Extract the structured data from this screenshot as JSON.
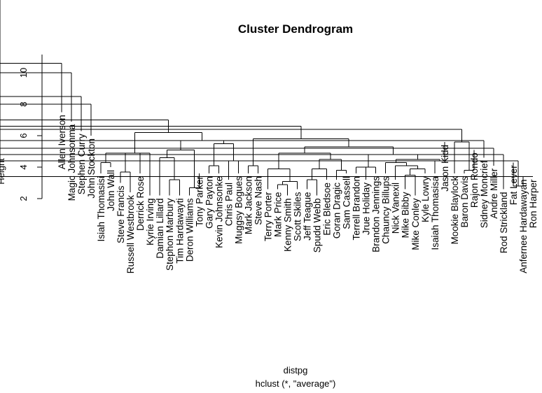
{
  "chart_data": {
    "type": "dendrogram",
    "title": "Cluster Dendrogram",
    "xlabel": "distpg",
    "sub": "hclust (*, \"average\")",
    "ylabel": "Height",
    "ylim": [
      2,
      11
    ],
    "yticks": [
      2,
      4,
      6,
      8,
      10
    ],
    "leaves": [
      {
        "name": "Allen Iverson",
        "h": 7.5
      },
      {
        "name": "Magic Johnsonma",
        "h": 6.9
      },
      {
        "name": "Stephen Curry",
        "h": 6.3
      },
      {
        "name": "John Stockton",
        "h": 6.0
      },
      {
        "name": "Isiah Thomasisi",
        "h": 3.6
      },
      {
        "name": "John Wall",
        "h": 4.0
      },
      {
        "name": "Steve Francis",
        "h": 3.0
      },
      {
        "name": "Russell Westbrook",
        "h": 2.4
      },
      {
        "name": "Derrick Rose",
        "h": 3.6
      },
      {
        "name": "Kyrie Irving",
        "h": 2.2
      },
      {
        "name": "Damian Lillard",
        "h": 2.2
      },
      {
        "name": "Stephon Marbury",
        "h": 2.2
      },
      {
        "name": "Tim Hardawayti",
        "h": 2.2
      },
      {
        "name": "Deron Williams",
        "h": 2.2
      },
      {
        "name": "Tony Parker",
        "h": 3.6
      },
      {
        "name": "Gary Payton",
        "h": 3.6
      },
      {
        "name": "Kevin Johnsonke",
        "h": 3.6
      },
      {
        "name": "Chris Paul",
        "h": 3.2
      },
      {
        "name": "Muggsy Bogues",
        "h": 3.6
      },
      {
        "name": "Mark Jackson",
        "h": 3.6
      },
      {
        "name": "Steve Nash",
        "h": 3.6
      },
      {
        "name": "Terry Porter",
        "h": 2.6
      },
      {
        "name": "Mark Price",
        "h": 2.6
      },
      {
        "name": "Kenny Smith",
        "h": 2.2
      },
      {
        "name": "Scott Skiles",
        "h": 2.6
      },
      {
        "name": "Jeff Teague",
        "h": 2.6
      },
      {
        "name": "Spudd Webb",
        "h": 2.2
      },
      {
        "name": "Eric Bledsoe",
        "h": 3.2
      },
      {
        "name": "Goran Dragic",
        "h": 3.2
      },
      {
        "name": "Sam Cassell",
        "h": 3.6
      },
      {
        "name": "Terrell Brandon",
        "h": 3.6
      },
      {
        "name": "Jrue Holiday",
        "h": 3.2
      },
      {
        "name": "Brandon Jennings",
        "h": 3.6
      },
      {
        "name": "Chauncy Billups",
        "h": 3.6
      },
      {
        "name": "Nick Vanexil",
        "h": 3.2
      },
      {
        "name": "Mike Bibby",
        "h": 2.6
      },
      {
        "name": "Mike Conley",
        "h": 2.2
      },
      {
        "name": "Kyle Lowry",
        "h": 3.6
      },
      {
        "name": "Isaiah Thomasisa",
        "h": 3.6
      },
      {
        "name": "Jason Kidd",
        "h": 5.6
      },
      {
        "name": "Mookie Blaylock",
        "h": 3.6
      },
      {
        "name": "Baron Davis",
        "h": 3.6
      },
      {
        "name": "Rajon Rondo",
        "h": 5.1
      },
      {
        "name": "Sidney Moncrief",
        "h": 4.6
      },
      {
        "name": "Andre Miller",
        "h": 4.1
      },
      {
        "name": "Rod Strickland",
        "h": 2.6
      },
      {
        "name": "Fat Lever",
        "h": 4.3
      },
      {
        "name": "Anfernee Hardawayan",
        "h": 3.4
      },
      {
        "name": "Ron Harper",
        "h": 3.4
      }
    ],
    "merges": [
      {
        "a": "L4",
        "b": "L5",
        "h": 4.3
      },
      {
        "a": "L6",
        "b": "L7",
        "h": 3.7
      },
      {
        "a": "m1",
        "b": "L8",
        "h": 4.9
      },
      {
        "a": "m0",
        "b": "m2",
        "h": 4.9
      },
      {
        "a": "L9",
        "b": "m3",
        "h": 4.9
      },
      {
        "a": "L11",
        "b": "L12",
        "h": 3.2
      },
      {
        "a": "L10",
        "b": "m5",
        "h": 4.6
      },
      {
        "a": "L13",
        "b": "L14",
        "h": 2.7
      },
      {
        "a": "m6",
        "b": "m7",
        "h": 5.1
      },
      {
        "a": "L15",
        "b": "L16",
        "h": 4.1
      },
      {
        "a": "L17",
        "b": "L18",
        "h": 4.4
      },
      {
        "a": "m9",
        "b": "m10",
        "h": 5.5
      },
      {
        "a": "m8",
        "b": "m11",
        "h": 5.7
      },
      {
        "a": "m4",
        "b": "m12",
        "h": 6.2
      },
      {
        "a": "L19",
        "b": "L20",
        "h": 4.1
      },
      {
        "a": "L22",
        "b": "L23",
        "h": 2.9
      },
      {
        "a": "m15",
        "b": "L24",
        "h": 3.1
      },
      {
        "a": "L21",
        "b": "m16",
        "h": 3.9
      },
      {
        "a": "L25",
        "b": "L26",
        "h": 3.2
      },
      {
        "a": "m18",
        "b": "L27",
        "h": 3.9
      },
      {
        "a": "L28",
        "b": "L29",
        "h": 3.8
      },
      {
        "a": "m19",
        "b": "m20",
        "h": 4.5
      },
      {
        "a": "m17",
        "b": "m21",
        "h": 4.9
      },
      {
        "a": "L30",
        "b": "L31",
        "h": 4.0
      },
      {
        "a": "m23",
        "b": "L32",
        "h": 4.0
      },
      {
        "a": "L35",
        "b": "L36",
        "h": 3.5
      },
      {
        "a": "m25",
        "b": "L37",
        "h": 3.9
      },
      {
        "a": "L34",
        "b": "m26",
        "h": 4.1
      },
      {
        "a": "L33",
        "b": "m27",
        "h": 4.3
      },
      {
        "a": "L38",
        "b": "L39",
        "h": 4.4
      },
      {
        "a": "m28",
        "b": "m29",
        "h": 4.5
      },
      {
        "a": "m24",
        "b": "m30",
        "h": 4.8
      },
      {
        "a": "m22",
        "b": "m31",
        "h": 5.3
      },
      {
        "a": "m14",
        "b": "m32",
        "h": 5.8
      },
      {
        "a": "L41",
        "b": "L42",
        "h": 3.8
      },
      {
        "a": "L40",
        "b": "m34",
        "h": 5.6
      },
      {
        "a": "L46",
        "b": "L47",
        "h": 2.8
      },
      {
        "a": "L48",
        "b": "L49",
        "h": 3.4
      },
      {
        "a": "m36",
        "b": "m37",
        "h": 4.4
      },
      {
        "a": "L45",
        "b": "m38",
        "h": 4.8
      },
      {
        "a": "L44",
        "b": "m39",
        "h": 5.2
      },
      {
        "a": "L43",
        "b": "m40",
        "h": 5.7
      },
      {
        "a": "m35",
        "b": "m41",
        "h": 6.4
      },
      {
        "a": "m33",
        "b": "m42",
        "h": 6.6
      },
      {
        "a": "m13",
        "b": "m43",
        "h": 7.0
      },
      {
        "a": "L3",
        "b": "m44",
        "h": 8.0
      },
      {
        "a": "L2",
        "b": "m45",
        "h": 8.5
      },
      {
        "a": "L1",
        "b": "m46",
        "h": 10.0
      },
      {
        "a": "L0",
        "b": "m47",
        "h": 10.6
      }
    ]
  }
}
